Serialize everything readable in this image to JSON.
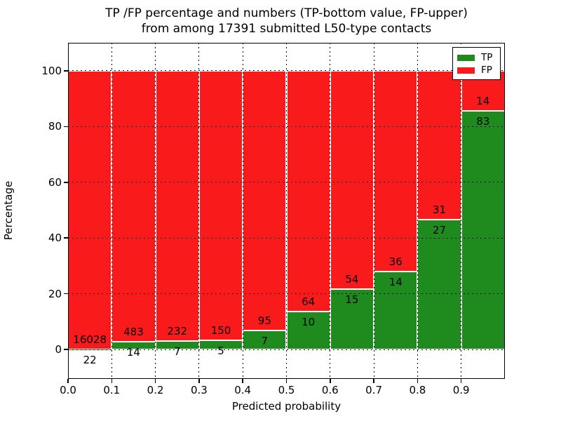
{
  "title": {
    "line1": "TP /FP percentage and numbers (TP-bottom value, FP-upper)",
    "line2": "from among 17391 submitted L50-type contacts"
  },
  "axes": {
    "xlabel": "Predicted probability",
    "ylabel": "Percentage",
    "x_tick_labels": [
      "0.0",
      "0.1",
      "0.2",
      "0.3",
      "0.4",
      "0.5",
      "0.6",
      "0.7",
      "0.8",
      "0.9"
    ],
    "y_tick_labels": [
      "0",
      "20",
      "40",
      "60",
      "80",
      "100"
    ],
    "y_tick_values": [
      0,
      20,
      40,
      60,
      80,
      100
    ]
  },
  "legend": {
    "items": [
      {
        "label": "TP",
        "color": "#1f8b1f"
      },
      {
        "label": "FP",
        "color": "#f91b1b"
      }
    ]
  },
  "colors": {
    "tp": "#1f8b1f",
    "fp": "#f91b1b",
    "bar_edge": "#ffffff",
    "grid": "#000000"
  },
  "chart_data": {
    "type": "bar",
    "stacked": true,
    "normalized_to_percent": true,
    "title": "TP /FP percentage and numbers (TP-bottom value, FP-upper) from among 17391 submitted L50-type contacts",
    "xlabel": "Predicted probability",
    "ylabel": "Percentage",
    "bin_edges": [
      0.0,
      0.1,
      0.2,
      0.3,
      0.4,
      0.5,
      0.6,
      0.7,
      0.8,
      0.9,
      1.0
    ],
    "categories": [
      "0.0-0.1",
      "0.1-0.2",
      "0.2-0.3",
      "0.3-0.4",
      "0.4-0.5",
      "0.5-0.6",
      "0.6-0.7",
      "0.7-0.8",
      "0.8-0.9",
      "0.9-1.0"
    ],
    "series": [
      {
        "name": "TP",
        "position": "bottom",
        "color": "#1f8b1f",
        "counts": [
          22,
          14,
          7,
          5,
          7,
          10,
          15,
          14,
          27,
          83
        ],
        "percentages": [
          0.14,
          2.82,
          2.93,
          3.23,
          6.86,
          13.51,
          21.74,
          28.0,
          46.55,
          85.57
        ]
      },
      {
        "name": "FP",
        "position": "top",
        "color": "#f91b1b",
        "counts": [
          16028,
          483,
          232,
          150,
          95,
          64,
          54,
          36,
          31,
          14
        ],
        "percentages": [
          99.86,
          97.18,
          97.07,
          96.77,
          93.14,
          86.49,
          78.26,
          72.0,
          53.45,
          14.43
        ]
      }
    ],
    "xlim": [
      0.0,
      1.0
    ],
    "ylim": [
      -10.5,
      110
    ],
    "yticks": [
      0,
      20,
      40,
      60,
      80,
      100
    ],
    "grid": "dotted, drawn over bars",
    "legend_position": "upper right"
  }
}
